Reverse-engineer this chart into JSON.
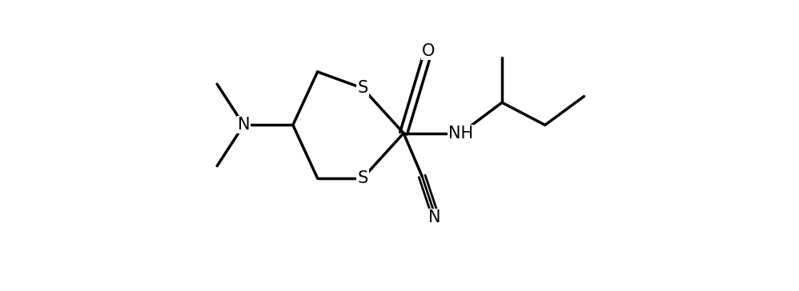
{
  "background_color": "#ffffff",
  "line_color": "#000000",
  "line_width": 2.5,
  "font_size": 15,
  "figsize": [
    9.98,
    3.64
  ],
  "dpi": 100,
  "xlim": [
    0,
    10
  ],
  "ylim": [
    0,
    7
  ]
}
